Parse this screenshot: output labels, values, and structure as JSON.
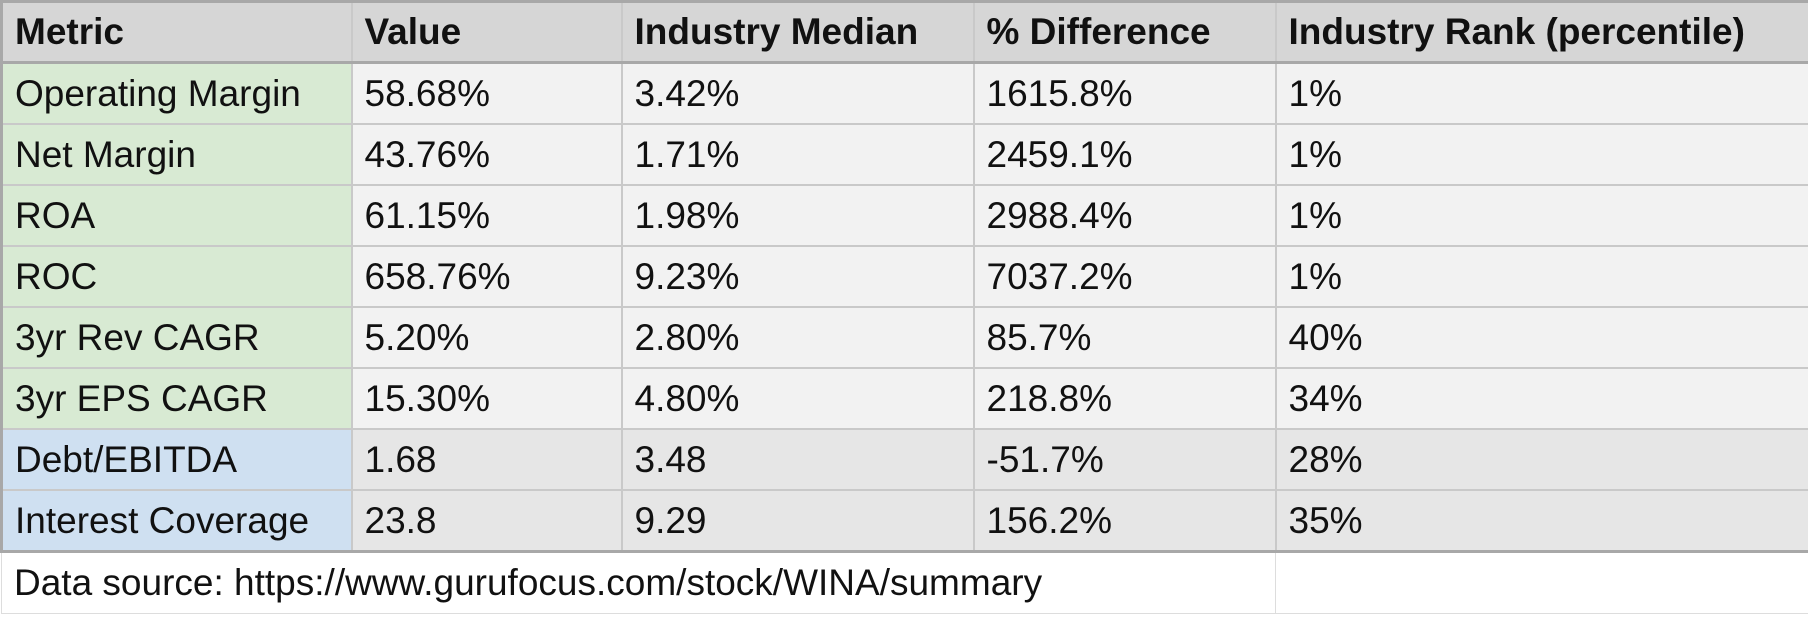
{
  "table": {
    "headers": [
      "Metric",
      "Value",
      "Industry Median",
      "% Difference",
      "Industry Rank (percentile)"
    ],
    "rows": [
      {
        "metric": "Operating Margin",
        "value": "58.68%",
        "median": "3.42%",
        "diff": "1615.8%",
        "rank": "1%",
        "group": "green"
      },
      {
        "metric": "Net Margin",
        "value": "43.76%",
        "median": "1.71%",
        "diff": "2459.1%",
        "rank": "1%",
        "group": "green"
      },
      {
        "metric": "ROA",
        "value": "61.15%",
        "median": "1.98%",
        "diff": "2988.4%",
        "rank": "1%",
        "group": "green"
      },
      {
        "metric": "ROC",
        "value": "658.76%",
        "median": "9.23%",
        "diff": "7037.2%",
        "rank": "1%",
        "group": "green"
      },
      {
        "metric": "3yr Rev CAGR",
        "value": "5.20%",
        "median": "2.80%",
        "diff": "85.7%",
        "rank": "40%",
        "group": "green"
      },
      {
        "metric": "3yr EPS CAGR",
        "value": "15.30%",
        "median": "4.80%",
        "diff": "218.8%",
        "rank": "34%",
        "group": "green"
      },
      {
        "metric": "Debt/EBITDA",
        "value": "1.68",
        "median": "3.48",
        "diff": "-51.7%",
        "rank": "28%",
        "group": "blue"
      },
      {
        "metric": "Interest Coverage",
        "value": "23.8",
        "median": "9.29",
        "diff": "156.2%",
        "rank": "35%",
        "group": "blue"
      }
    ],
    "footer": "Data source: https://www.gurufocus.com/stock/WINA/summary"
  },
  "colors": {
    "header_bg": "#d6d6d6",
    "cell_bg": "#f2f2f2",
    "debt_cell_bg": "#e6e6e6",
    "green_metric_bg": "#d8ead3",
    "blue_metric_bg": "#cfe0f1",
    "border": "#c9c9c9"
  }
}
